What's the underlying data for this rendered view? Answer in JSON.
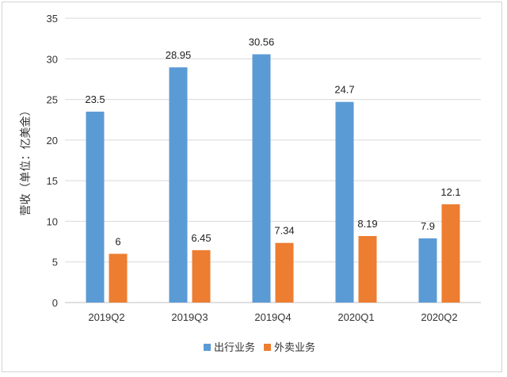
{
  "chart_data": {
    "type": "bar",
    "categories": [
      "2019Q2",
      "2019Q3",
      "2019Q4",
      "2020Q1",
      "2020Q2"
    ],
    "series": [
      {
        "name": "出行业务",
        "values": [
          23.5,
          28.95,
          30.56,
          24.7,
          7.9
        ],
        "color": "#5B9BD5"
      },
      {
        "name": "外卖业务",
        "values": [
          6,
          6.45,
          7.34,
          8.19,
          12.1
        ],
        "color": "#ED7D31"
      }
    ],
    "value_labels": [
      [
        "23.5",
        "28.95",
        "30.56",
        "24.7",
        "7.9"
      ],
      [
        "6",
        "6.45",
        "7.34",
        "8.19",
        "12.1"
      ]
    ],
    "ylabel": "营收（单位：亿美金）",
    "ylim": [
      0,
      35
    ],
    "yticks": [
      0,
      5,
      10,
      15,
      20,
      25,
      30,
      35
    ],
    "grid": true,
    "legend": "bottom"
  }
}
